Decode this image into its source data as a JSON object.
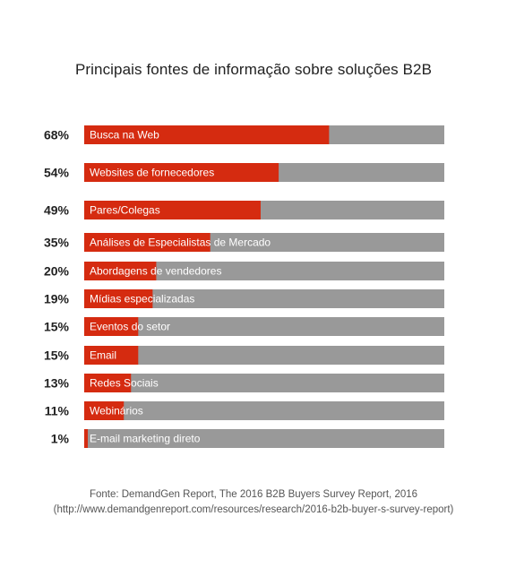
{
  "title": "Principais fontes de informação sobre soluções B2B",
  "source": {
    "line1": "Fonte: DemandGen Report, The 2016 B2B Buyers Survey Report, 2016",
    "line2": "(http://www.demandgenreport.com/resources/research/2016-b2b-buyer-s-survey-report)"
  },
  "colors": {
    "value_bar": "#d52b10",
    "track": "#999999"
  },
  "chart_data": {
    "type": "bar",
    "orientation": "horizontal",
    "title": "Principais fontes de informação sobre soluções B2B",
    "xlim": [
      0,
      100
    ],
    "grid": false,
    "categories": [
      "Busca na Web",
      "Websites de fornecedores",
      "Pares/Colegas",
      "Análises de Especialistas de Mercado",
      "Abordagens de vendedores",
      "Mídias especializadas",
      "Eventos do setor",
      "Email",
      "Redes Sociais",
      "Webinários",
      "E-mail marketing direto"
    ],
    "values": [
      68,
      54,
      49,
      35,
      20,
      19,
      15,
      15,
      13,
      11,
      1
    ],
    "value_labels": [
      "68%",
      "54%",
      "49%",
      "35%",
      "20%",
      "19%",
      "15%",
      "15%",
      "13%",
      "11%",
      "1%"
    ]
  }
}
